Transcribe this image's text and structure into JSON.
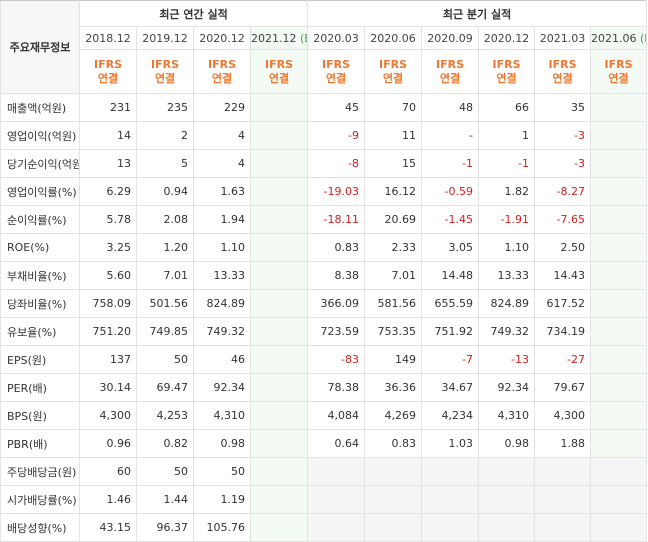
{
  "corner_label": "주요재무정보",
  "groups": {
    "annual": "최근 연간 실적",
    "quarterly": "최근 분기 실적"
  },
  "annual_periods": [
    {
      "label": "2018.12",
      "est": ""
    },
    {
      "label": "2019.12",
      "est": ""
    },
    {
      "label": "2020.12",
      "est": ""
    },
    {
      "label": "2021.12",
      "est": "(E)"
    }
  ],
  "quarter_periods": [
    {
      "label": "2020.03",
      "est": ""
    },
    {
      "label": "2020.06",
      "est": ""
    },
    {
      "label": "2020.09",
      "est": ""
    },
    {
      "label": "2020.12",
      "est": ""
    },
    {
      "label": "2021.03",
      "est": ""
    },
    {
      "label": "2021.06",
      "est": "(E)"
    }
  ],
  "ifrs_label": "IFRS",
  "consolidated_label": "연결",
  "rows": [
    {
      "label": "매출액(억원)",
      "annual": [
        "231",
        "235",
        "229",
        ""
      ],
      "quarter": [
        "45",
        "70",
        "48",
        "66",
        "35",
        ""
      ]
    },
    {
      "label": "영업이익(억원)",
      "annual": [
        "14",
        "2",
        "4",
        ""
      ],
      "quarter": [
        "-9",
        "11",
        "-",
        "1",
        "-3",
        ""
      ]
    },
    {
      "label": "당기순이익(억원)",
      "annual": [
        "13",
        "5",
        "4",
        ""
      ],
      "quarter": [
        "-8",
        "15",
        "-1",
        "-1",
        "-3",
        ""
      ]
    },
    {
      "label": "영업이익률(%)",
      "annual": [
        "6.29",
        "0.94",
        "1.63",
        ""
      ],
      "quarter": [
        "-19.03",
        "16.12",
        "-0.59",
        "1.82",
        "-8.27",
        ""
      ]
    },
    {
      "label": "순이익률(%)",
      "annual": [
        "5.78",
        "2.08",
        "1.94",
        ""
      ],
      "quarter": [
        "-18.11",
        "20.69",
        "-1.45",
        "-1.91",
        "-7.65",
        ""
      ]
    },
    {
      "label": "ROE(%)",
      "annual": [
        "3.25",
        "1.20",
        "1.10",
        ""
      ],
      "quarter": [
        "0.83",
        "2.33",
        "3.05",
        "1.10",
        "2.50",
        ""
      ]
    },
    {
      "label": "부채비율(%)",
      "annual": [
        "5.60",
        "7.01",
        "13.33",
        ""
      ],
      "quarter": [
        "8.38",
        "7.01",
        "14.48",
        "13.33",
        "14.43",
        ""
      ]
    },
    {
      "label": "당좌비율(%)",
      "annual": [
        "758.09",
        "501.56",
        "824.89",
        ""
      ],
      "quarter": [
        "366.09",
        "581.56",
        "655.59",
        "824.89",
        "617.52",
        ""
      ]
    },
    {
      "label": "유보율(%)",
      "annual": [
        "751.20",
        "749.85",
        "749.32",
        ""
      ],
      "quarter": [
        "723.59",
        "753.35",
        "751.92",
        "749.32",
        "734.19",
        ""
      ]
    },
    {
      "label": "EPS(원)",
      "annual": [
        "137",
        "50",
        "46",
        ""
      ],
      "quarter": [
        "-83",
        "149",
        "-7",
        "-13",
        "-27",
        ""
      ]
    },
    {
      "label": "PER(배)",
      "annual": [
        "30.14",
        "69.47",
        "92.34",
        ""
      ],
      "quarter": [
        "78.38",
        "36.36",
        "34.67",
        "92.34",
        "79.67",
        ""
      ]
    },
    {
      "label": "BPS(원)",
      "annual": [
        "4,300",
        "4,253",
        "4,310",
        ""
      ],
      "quarter": [
        "4,084",
        "4,269",
        "4,234",
        "4,310",
        "4,300",
        ""
      ]
    },
    {
      "label": "PBR(배)",
      "annual": [
        "0.96",
        "0.82",
        "0.98",
        ""
      ],
      "quarter": [
        "0.64",
        "0.83",
        "1.03",
        "0.98",
        "1.88",
        ""
      ]
    },
    {
      "label": "주당배당금(원)",
      "annual": [
        "60",
        "50",
        "50",
        ""
      ],
      "quarter": [
        "",
        "",
        "",
        "",
        "",
        ""
      ]
    },
    {
      "label": "시가배당률(%)",
      "annual": [
        "1.46",
        "1.44",
        "1.19",
        ""
      ],
      "quarter": [
        "",
        "",
        "",
        "",
        "",
        ""
      ]
    },
    {
      "label": "배당성향(%)",
      "annual": [
        "43.15",
        "96.37",
        "105.76",
        ""
      ],
      "quarter": [
        "",
        "",
        "",
        "",
        "",
        ""
      ]
    }
  ],
  "colors": {
    "ifrs_orange": "#f07730",
    "negative_red": "#d61c1c",
    "estimate_green": "#3fa34d",
    "estimate_bg": "#f4fbf4"
  }
}
